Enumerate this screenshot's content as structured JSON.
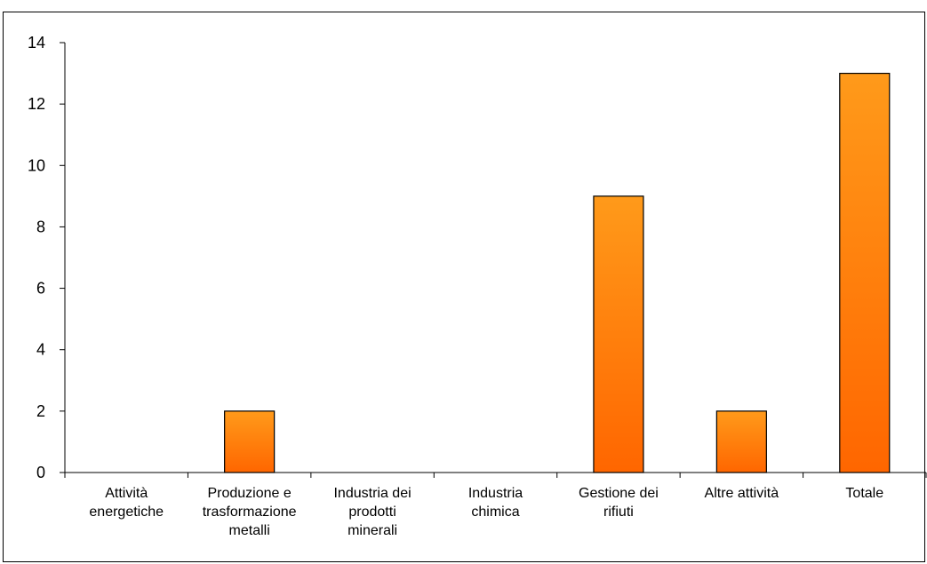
{
  "chart_data": {
    "type": "bar",
    "categories": [
      [
        "Attività",
        "energetiche"
      ],
      [
        "Produzione e",
        "trasformazione",
        "metalli"
      ],
      [
        "Industria dei",
        "prodotti",
        "minerali"
      ],
      [
        "Industria",
        "chimica"
      ],
      [
        "Gestione dei",
        "rifiuti"
      ],
      [
        "Altre attività"
      ],
      [
        "Totale"
      ]
    ],
    "values": [
      0,
      2,
      0,
      0,
      9,
      2,
      13
    ],
    "title": "",
    "xlabel": "",
    "ylabel": "",
    "ylim": [
      0,
      14
    ],
    "yticks": [
      0,
      2,
      4,
      6,
      8,
      10,
      12,
      14
    ],
    "grid": false,
    "legend": "none",
    "bar_color_top": "#ff9a1a",
    "bar_color_bottom": "#ff6600",
    "bar_stroke": "#000000"
  }
}
